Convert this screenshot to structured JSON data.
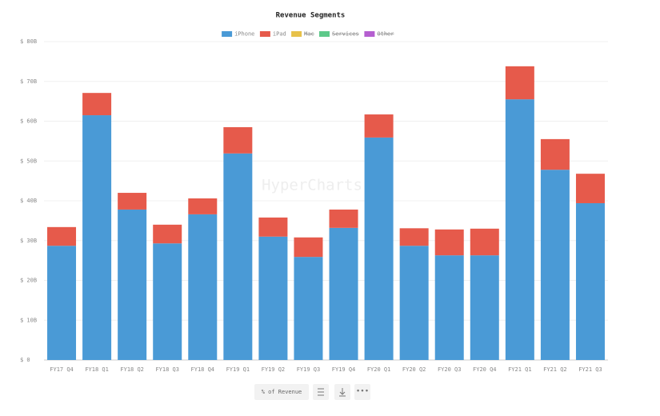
{
  "chart_data": {
    "type": "stacked_bar",
    "title": "Revenue Segments",
    "watermark": "HyperCharts",
    "categories": [
      "FY17 Q4",
      "FY18 Q1",
      "FY18 Q2",
      "FY18 Q3",
      "FY18 Q4",
      "FY19 Q1",
      "FY19 Q2",
      "FY19 Q3",
      "FY19 Q4",
      "FY20 Q1",
      "FY20 Q2",
      "FY20 Q3",
      "FY20 Q4",
      "FY21 Q1",
      "FY21 Q2",
      "FY21 Q3"
    ],
    "series": [
      {
        "name": "iPhone",
        "color": "#4a9ad6",
        "values": [
          28.7,
          61.5,
          37.8,
          29.3,
          36.6,
          51.9,
          31.0,
          25.9,
          33.2,
          55.9,
          28.7,
          26.3,
          26.3,
          65.5,
          47.8,
          39.4
        ]
      },
      {
        "name": "iPad",
        "color": "#e65a4b",
        "values": [
          4.7,
          5.6,
          4.2,
          4.7,
          4.0,
          6.6,
          4.8,
          4.9,
          4.6,
          5.8,
          4.4,
          6.5,
          6.7,
          8.3,
          7.7,
          7.4
        ]
      },
      {
        "name": "Mac",
        "color": "#e8c24a",
        "hidden": true,
        "values": [
          null,
          null,
          null,
          null,
          null,
          null,
          null,
          null,
          null,
          null,
          null,
          null,
          null,
          null,
          null,
          null
        ]
      },
      {
        "name": "Services",
        "color": "#5dc98a",
        "hidden": true,
        "values": [
          null,
          null,
          null,
          null,
          null,
          null,
          null,
          null,
          null,
          null,
          null,
          null,
          null,
          null,
          null,
          null
        ]
      },
      {
        "name": "Other",
        "color": "#b55fd0",
        "hidden": true,
        "values": [
          null,
          null,
          null,
          null,
          null,
          null,
          null,
          null,
          null,
          null,
          null,
          null,
          null,
          null,
          null,
          null
        ]
      }
    ],
    "ylim": [
      0,
      80
    ],
    "yticks": [
      {
        "value": 0,
        "label": "$ 0"
      },
      {
        "value": 10,
        "label": "$ 10B"
      },
      {
        "value": 20,
        "label": "$ 20B"
      },
      {
        "value": 30,
        "label": "$ 30B"
      },
      {
        "value": 40,
        "label": "$ 40B"
      },
      {
        "value": 50,
        "label": "$ 50B"
      },
      {
        "value": 60,
        "label": "$ 60B"
      },
      {
        "value": 70,
        "label": "$ 70B"
      },
      {
        "value": 80,
        "label": "$ 80B"
      }
    ],
    "grid": true,
    "button": "% of Revenue"
  }
}
